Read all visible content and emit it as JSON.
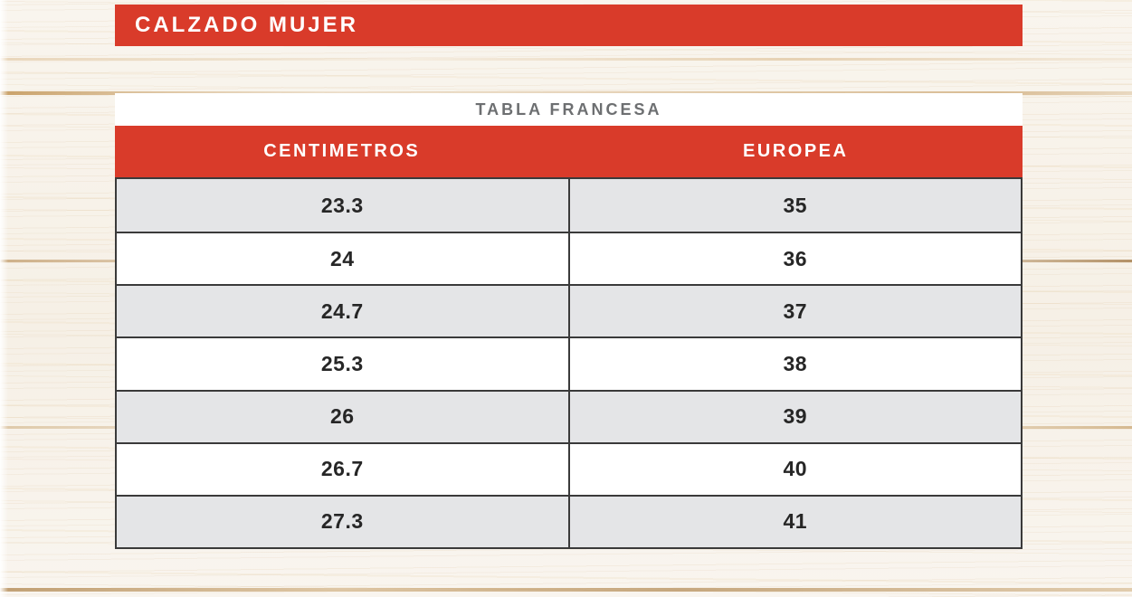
{
  "banner": {
    "title": "CALZADO MUJER"
  },
  "size_table": {
    "caption": "TABLA FRANCESA",
    "columns": [
      "CENTIMETROS",
      "EUROPEA"
    ],
    "rows": [
      [
        "23.3",
        "35"
      ],
      [
        "24",
        "36"
      ],
      [
        "24.7",
        "37"
      ],
      [
        "25.3",
        "38"
      ],
      [
        "26",
        "39"
      ],
      [
        "26.7",
        "40"
      ],
      [
        "27.3",
        "41"
      ]
    ]
  },
  "chart_data": {
    "type": "table",
    "title": "TABLA FRANCESA",
    "columns": [
      "CENTIMETROS",
      "EUROPEA"
    ],
    "rows": [
      [
        "23.3",
        "35"
      ],
      [
        "24",
        "36"
      ],
      [
        "24.7",
        "37"
      ],
      [
        "25.3",
        "38"
      ],
      [
        "26",
        "39"
      ],
      [
        "26.7",
        "40"
      ],
      [
        "27.3",
        "41"
      ]
    ]
  },
  "colors": {
    "accent-red": "#d93b2a",
    "header-text": "#ffffff",
    "row-alt": "#e4e5e7",
    "row-base": "#ffffff",
    "grid-border": "#3a3a3a",
    "cell-text": "#262626",
    "caption-text": "#6d6f71",
    "caption-bg": "#ffffff",
    "wood-base": "#f8f3ea"
  }
}
